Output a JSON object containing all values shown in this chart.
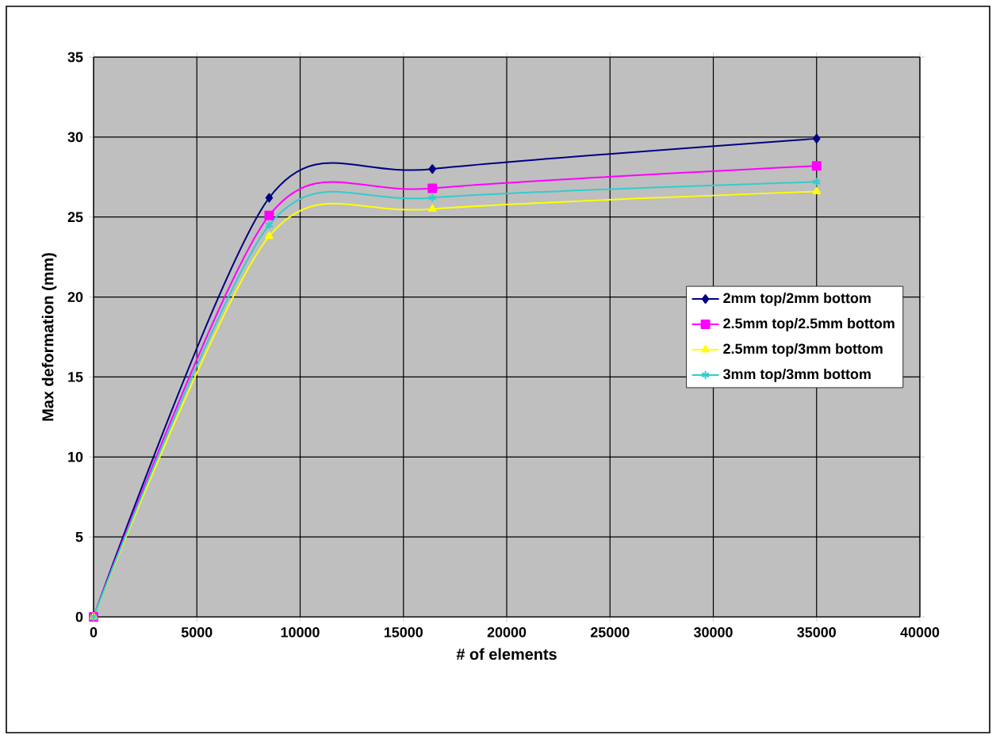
{
  "chart_data": {
    "type": "line",
    "xlabel": "# of elements",
    "ylabel": "Max deformation (mm)",
    "x": [
      0,
      8500,
      16400,
      35000
    ],
    "series": [
      {
        "name": "2mm top/2mm bottom",
        "color": "#000080",
        "marker": "diamond",
        "values": [
          0,
          26.2,
          28.0,
          29.9
        ]
      },
      {
        "name": "2.5mm top/2.5mm bottom",
        "color": "#ff00ff",
        "marker": "square",
        "values": [
          0,
          25.1,
          26.8,
          28.2
        ]
      },
      {
        "name": "2.5mm top/3mm bottom",
        "color": "#ffff00",
        "marker": "triangle",
        "values": [
          0,
          23.8,
          25.5,
          26.6
        ]
      },
      {
        "name": "3mm top/3mm bottom",
        "color": "#33cccc",
        "marker": "cross",
        "values": [
          0,
          24.5,
          26.2,
          27.2
        ]
      }
    ],
    "xlim": [
      0,
      40000
    ],
    "xticks": [
      0,
      5000,
      10000,
      15000,
      20000,
      25000,
      30000,
      35000,
      40000
    ],
    "ylim": [
      0,
      35
    ],
    "yticks": [
      0,
      5,
      10,
      15,
      20,
      25,
      30,
      35
    ],
    "grid": true,
    "legend": "right"
  }
}
